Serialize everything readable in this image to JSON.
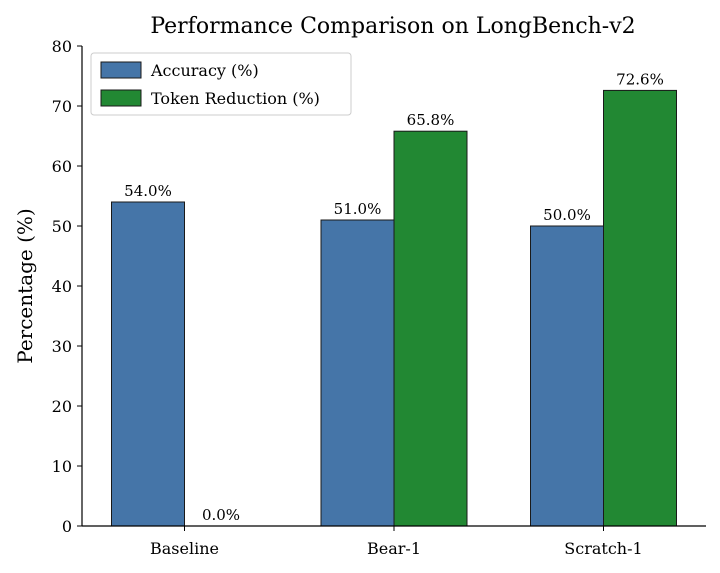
{
  "chart_data": {
    "type": "bar",
    "title": "Performance Comparison on LongBench-v2",
    "xlabel": "",
    "ylabel": "Percentage (%)",
    "categories": [
      "Baseline",
      "Bear-1",
      "Scratch-1"
    ],
    "series": [
      {
        "name": "Accuracy (%)",
        "values": [
          54.0,
          51.0,
          50.0
        ],
        "color": "#4575a8",
        "labels": [
          "54.0%",
          "51.0%",
          "50.0%"
        ]
      },
      {
        "name": "Token Reduction (%)",
        "values": [
          0.0,
          65.8,
          72.6
        ],
        "color": "#228833",
        "labels": [
          "0.0%",
          "65.8%",
          "72.6%"
        ]
      }
    ],
    "ylim": [
      0,
      80
    ],
    "yticks": [
      0,
      10,
      20,
      30,
      40,
      50,
      60,
      70,
      80
    ],
    "grid": false,
    "legend": "top-left"
  }
}
